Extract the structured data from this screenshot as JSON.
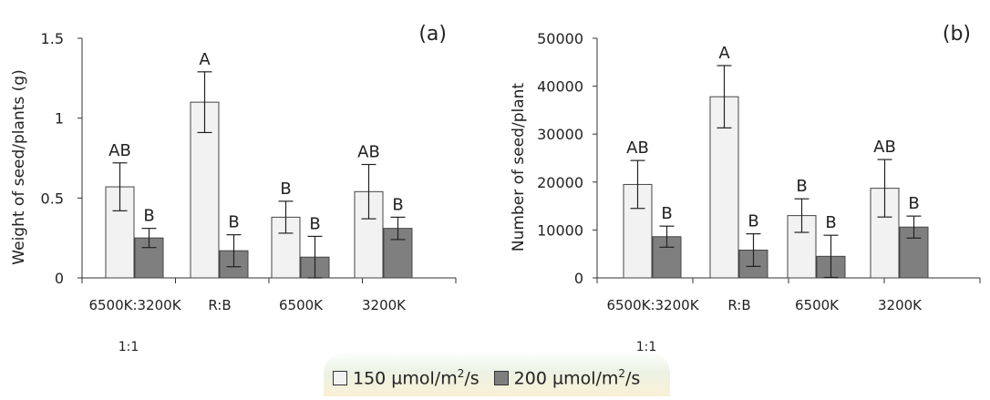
{
  "chart_data": [
    {
      "type": "bar",
      "panel_label": "(a)",
      "ylabel": "Weight of seed/plants (g)",
      "ylim": [
        0,
        1.5
      ],
      "yticks": [
        "0",
        "0.5",
        "1",
        "1.5"
      ],
      "categories": [
        "6500K:3200K",
        "R:B",
        "6500K",
        "3200K"
      ],
      "category_sublabels": [
        "1:1",
        "",
        "",
        ""
      ],
      "series": [
        {
          "name": "150 µmol/m²/s",
          "values": [
            0.57,
            1.1,
            0.38,
            0.54
          ],
          "errors": [
            0.15,
            0.19,
            0.1,
            0.17
          ],
          "letters": [
            "AB",
            "A",
            "B",
            "AB"
          ],
          "color": "#f2f2f2"
        },
        {
          "name": "200 µmol/m²/s",
          "values": [
            0.25,
            0.17,
            0.13,
            0.31
          ],
          "errors": [
            0.06,
            0.1,
            0.13,
            0.07
          ],
          "letters": [
            "B",
            "B",
            "B",
            "B"
          ],
          "color": "#7f7f7f"
        }
      ]
    },
    {
      "type": "bar",
      "panel_label": "(b)",
      "ylabel": "Number of seed/plant",
      "ylim": [
        0,
        50000
      ],
      "yticks": [
        "0",
        "10000",
        "20000",
        "30000",
        "40000",
        "50000"
      ],
      "categories": [
        "6500K:3200K",
        "R:B",
        "6500K",
        "3200K"
      ],
      "category_sublabels": [
        "1:1",
        "",
        "",
        ""
      ],
      "series": [
        {
          "name": "150 µmol/m²/s",
          "values": [
            19500,
            37800,
            13000,
            18700
          ],
          "errors": [
            5000,
            6500,
            3500,
            6000
          ],
          "letters": [
            "AB",
            "A",
            "B",
            "AB"
          ],
          "color": "#f2f2f2"
        },
        {
          "name": "200 µmol/m²/s",
          "values": [
            8600,
            5800,
            4500,
            10600
          ],
          "errors": [
            2200,
            3400,
            4400,
            2300
          ],
          "letters": [
            "B",
            "B",
            "B",
            "B"
          ],
          "color": "#7f7f7f"
        }
      ]
    }
  ],
  "legend": {
    "item1_prefix": "150 µmol/m",
    "item1_sup": "2",
    "item1_suffix": "/s",
    "item2_prefix": "200 µmol/m",
    "item2_sup": "2",
    "item2_suffix": "/s",
    "color1": "#f2f2f2",
    "color2": "#7f7f7f"
  }
}
